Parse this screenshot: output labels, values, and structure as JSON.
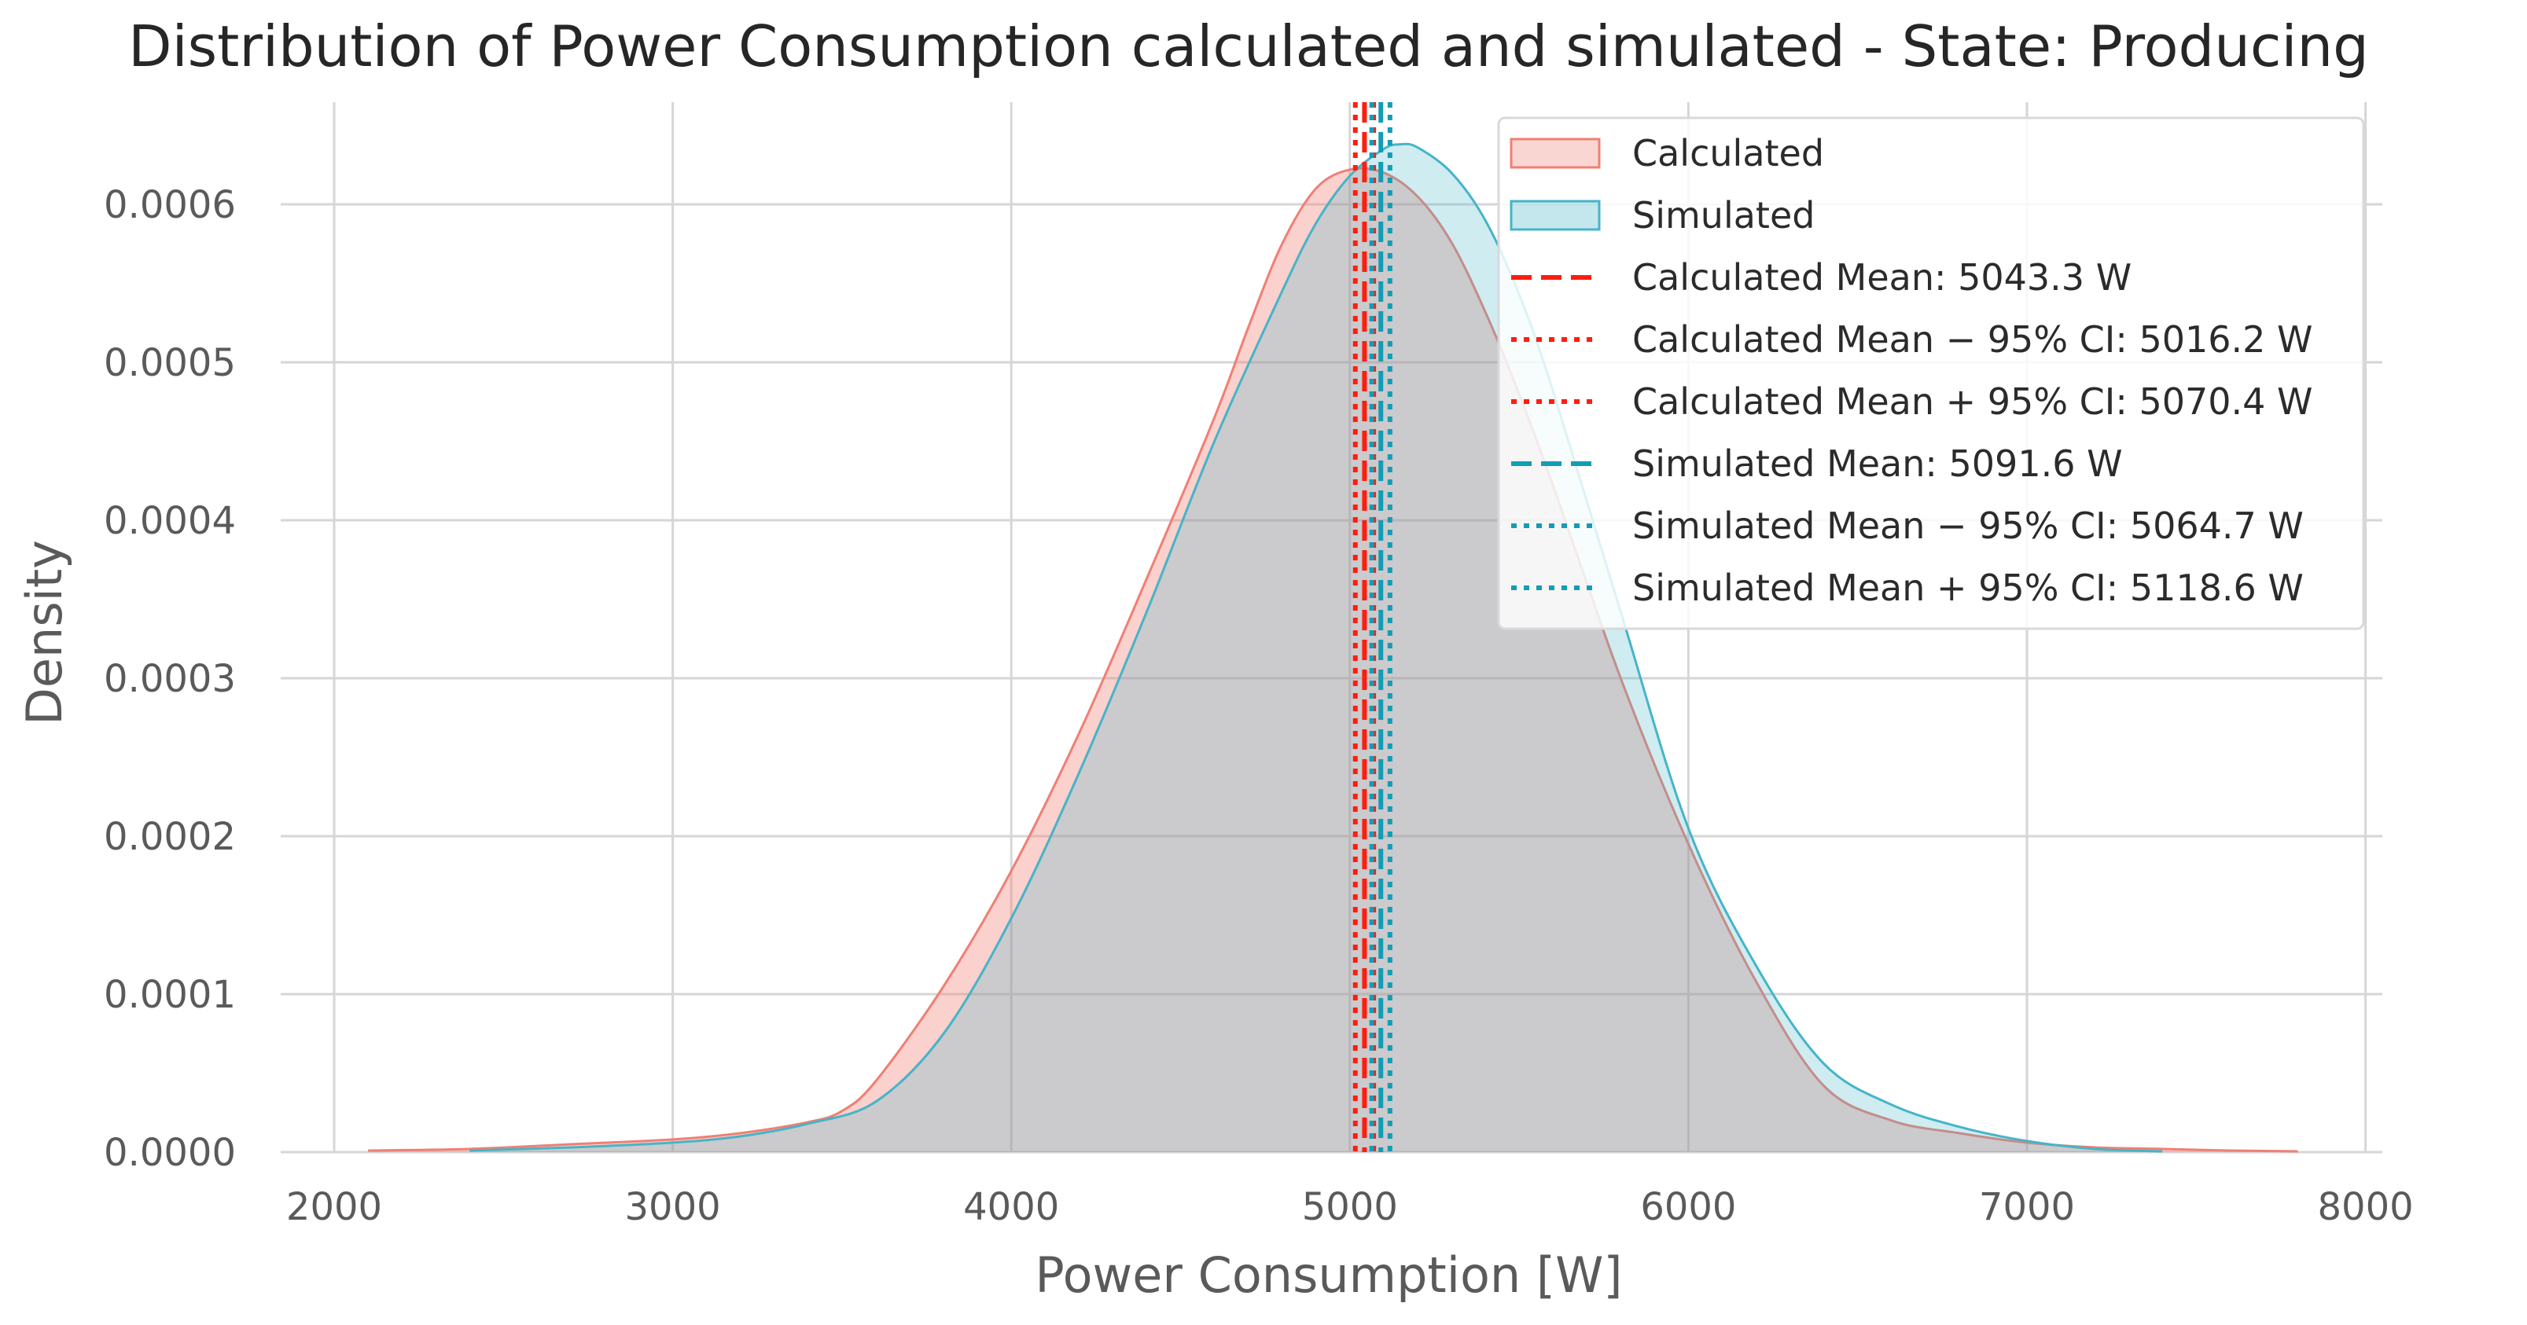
{
  "chart_data": {
    "type": "area",
    "title": "Distribution of Power Consumption calculated and simulated - State: Producing",
    "xlabel": "Power Consumption [W]",
    "ylabel": "Density",
    "xlim": [
      1750,
      8100
    ],
    "ylim": [
      0,
      0.00066
    ],
    "grid": true,
    "x_ticks": [
      2000,
      3000,
      4000,
      5000,
      6000,
      7000,
      8000
    ],
    "x_tick_labels": [
      "2000",
      "3000",
      "4000",
      "5000",
      "6000",
      "7000",
      "8000"
    ],
    "y_ticks": [
      0,
      0.0001,
      0.0002,
      0.0003,
      0.0004,
      0.0005,
      0.0006
    ],
    "y_tick_labels": [
      "0.0000",
      "0.0001",
      "0.0002",
      "0.0003",
      "0.0004",
      "0.0005",
      "0.0006"
    ],
    "legend_position": "top-right",
    "series": [
      {
        "name": "Calculated",
        "color": "#f07f74",
        "x": [
          2100,
          2400,
          2700,
          3000,
          3200,
          3400,
          3500,
          3600,
          3800,
          4000,
          4200,
          4400,
          4600,
          4700,
          4800,
          4900,
          5000,
          5100,
          5200,
          5300,
          5400,
          5500,
          5600,
          5800,
          6000,
          6200,
          6400,
          6600,
          6800,
          7000,
          7200,
          7400,
          7600,
          7800
        ],
        "values": [
          1e-06,
          2e-06,
          5e-06,
          8e-06,
          1.2e-05,
          1.9e-05,
          2.6e-05,
          4.5e-05,
          0.000105,
          0.000178,
          0.000265,
          0.000363,
          0.000465,
          0.000522,
          0.000575,
          0.00061,
          0.000622,
          0.00062,
          0.000605,
          0.000576,
          0.000532,
          0.00048,
          0.000422,
          0.0003,
          0.000195,
          0.000108,
          4.2e-05,
          2e-05,
          1.2e-05,
          6e-06,
          3e-06,
          2e-06,
          1e-06,
          5e-07
        ]
      },
      {
        "name": "Simulated",
        "color": "#46b4c8",
        "x": [
          2400,
          2700,
          3000,
          3200,
          3400,
          3600,
          3800,
          4000,
          4200,
          4400,
          4600,
          4800,
          4900,
          5000,
          5100,
          5150,
          5200,
          5300,
          5400,
          5500,
          5600,
          5800,
          6000,
          6200,
          6400,
          6600,
          6800,
          7000,
          7200,
          7400
        ],
        "values": [
          1e-06,
          3e-06,
          6e-06,
          1e-05,
          1.8e-05,
          3.2e-05,
          7.5e-05,
          0.000148,
          0.00024,
          0.000342,
          0.00045,
          0.000545,
          0.000588,
          0.000618,
          0.000635,
          0.000638,
          0.000636,
          0.00062,
          0.00059,
          0.000543,
          0.000482,
          0.000342,
          0.000205,
          0.000118,
          5.6e-05,
          3e-05,
          1.6e-05,
          7e-06,
          2e-06,
          5e-07
        ]
      }
    ],
    "vertical_lines": [
      {
        "label": "Calculated Mean: 5043.3 W",
        "x": 5043.3,
        "style": "dashed",
        "color": "#ff1d0f"
      },
      {
        "label": "Calculated Mean − 95% CI: 5016.2 W",
        "x": 5016.2,
        "style": "dotted",
        "color": "#ff1d0f"
      },
      {
        "label": "Calculated Mean + 95% CI: 5070.4 W",
        "x": 5070.4,
        "style": "dotted",
        "color": "#ff1d0f"
      },
      {
        "label": "Simulated Mean: 5091.6 W",
        "x": 5091.6,
        "style": "dashed",
        "color": "#139cb5"
      },
      {
        "label": "Simulated Mean − 95% CI: 5064.7 W",
        "x": 5064.7,
        "style": "dotted",
        "color": "#139cb5"
      },
      {
        "label": "Simulated Mean + 95% CI: 5118.6 W",
        "x": 5118.6,
        "style": "dotted",
        "color": "#139cb5"
      }
    ]
  }
}
